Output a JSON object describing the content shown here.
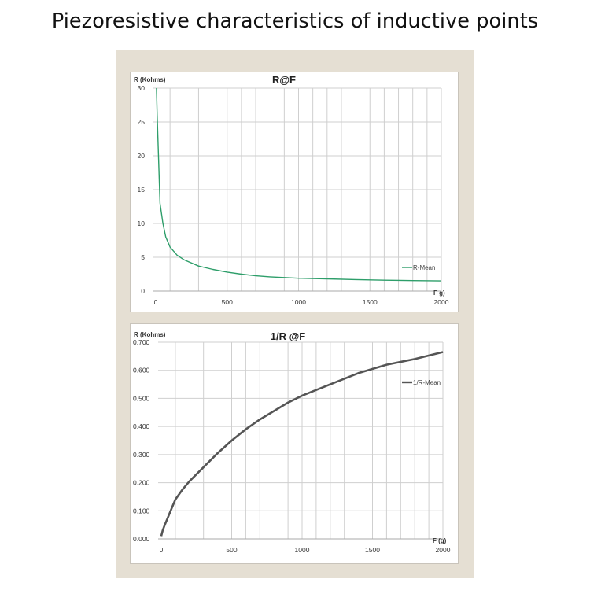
{
  "page": {
    "title": "Piezoresistive characteristics of inductive points",
    "panel_color": "#e5dfd3"
  },
  "chart_data": [
    {
      "type": "line",
      "title": "R@F",
      "xlabel": "F g)",
      "ylabel": "R (Kohms)",
      "xlim": [
        0,
        2000
      ],
      "ylim": [
        0,
        30
      ],
      "xticks": [
        "0",
        "500",
        "1000",
        "1500",
        "2000"
      ],
      "yticks": [
        "0",
        "5",
        "10",
        "15",
        "20",
        "25",
        "30"
      ],
      "grid": true,
      "legend_position": "right-lower",
      "series": [
        {
          "name": "R-Mean",
          "color": "#2e9e6a",
          "x": [
            5,
            10,
            20,
            30,
            50,
            70,
            100,
            150,
            200,
            300,
            400,
            500,
            600,
            700,
            800,
            900,
            1000,
            1200,
            1400,
            1600,
            1800,
            2000
          ],
          "y": [
            30,
            26,
            19.5,
            13,
            10,
            8,
            6.5,
            5.3,
            4.6,
            3.7,
            3.2,
            2.8,
            2.5,
            2.25,
            2.1,
            2.0,
            1.9,
            1.8,
            1.7,
            1.6,
            1.55,
            1.5
          ]
        }
      ]
    },
    {
      "type": "line",
      "title": "1/R @F",
      "xlabel": "F (g)",
      "ylabel": "R (Kohms)",
      "xlim": [
        0,
        2000
      ],
      "ylim": [
        0,
        0.7
      ],
      "xticks": [
        "0",
        "500",
        "1000",
        "1500",
        "2000"
      ],
      "yticks": [
        "0.000",
        "0.100",
        "0.200",
        "0.300",
        "0.400",
        "0.500",
        "0.600",
        "0.700"
      ],
      "grid": true,
      "legend_position": "right-upper",
      "series": [
        {
          "name": "1/R-Mean",
          "color": "#555555",
          "x": [
            0,
            10,
            25,
            50,
            75,
            100,
            150,
            200,
            300,
            400,
            500,
            600,
            700,
            800,
            900,
            1000,
            1200,
            1400,
            1600,
            1800,
            2000
          ],
          "y": [
            0.01,
            0.03,
            0.05,
            0.08,
            0.11,
            0.14,
            0.175,
            0.205,
            0.255,
            0.305,
            0.35,
            0.39,
            0.425,
            0.455,
            0.485,
            0.51,
            0.55,
            0.59,
            0.62,
            0.64,
            0.665
          ]
        }
      ]
    }
  ]
}
